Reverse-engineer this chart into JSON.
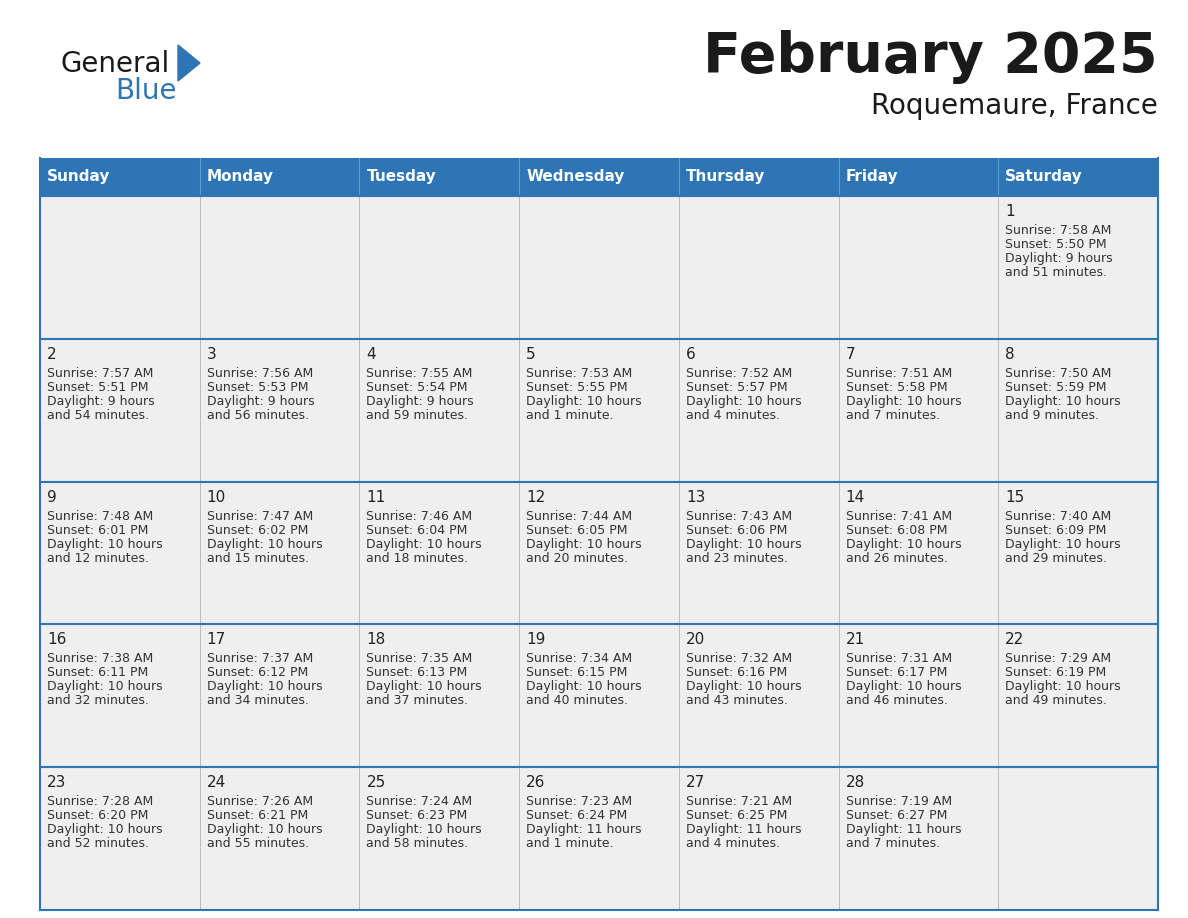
{
  "title": "February 2025",
  "subtitle": "Roquemaure, France",
  "header_bg": "#2E75B6",
  "header_text": "#FFFFFF",
  "days_of_week": [
    "Sunday",
    "Monday",
    "Tuesday",
    "Wednesday",
    "Thursday",
    "Friday",
    "Saturday"
  ],
  "row_bg": "#EFEFEF",
  "cell_border": "#2E75B6",
  "calendar_data": [
    [
      null,
      null,
      null,
      null,
      null,
      null,
      {
        "day": "1",
        "sunrise": "7:58 AM",
        "sunset": "5:50 PM",
        "daylight_line1": "Daylight: 9 hours",
        "daylight_line2": "and 51 minutes."
      }
    ],
    [
      {
        "day": "2",
        "sunrise": "7:57 AM",
        "sunset": "5:51 PM",
        "daylight_line1": "Daylight: 9 hours",
        "daylight_line2": "and 54 minutes."
      },
      {
        "day": "3",
        "sunrise": "7:56 AM",
        "sunset": "5:53 PM",
        "daylight_line1": "Daylight: 9 hours",
        "daylight_line2": "and 56 minutes."
      },
      {
        "day": "4",
        "sunrise": "7:55 AM",
        "sunset": "5:54 PM",
        "daylight_line1": "Daylight: 9 hours",
        "daylight_line2": "and 59 minutes."
      },
      {
        "day": "5",
        "sunrise": "7:53 AM",
        "sunset": "5:55 PM",
        "daylight_line1": "Daylight: 10 hours",
        "daylight_line2": "and 1 minute."
      },
      {
        "day": "6",
        "sunrise": "7:52 AM",
        "sunset": "5:57 PM",
        "daylight_line1": "Daylight: 10 hours",
        "daylight_line2": "and 4 minutes."
      },
      {
        "day": "7",
        "sunrise": "7:51 AM",
        "sunset": "5:58 PM",
        "daylight_line1": "Daylight: 10 hours",
        "daylight_line2": "and 7 minutes."
      },
      {
        "day": "8",
        "sunrise": "7:50 AM",
        "sunset": "5:59 PM",
        "daylight_line1": "Daylight: 10 hours",
        "daylight_line2": "and 9 minutes."
      }
    ],
    [
      {
        "day": "9",
        "sunrise": "7:48 AM",
        "sunset": "6:01 PM",
        "daylight_line1": "Daylight: 10 hours",
        "daylight_line2": "and 12 minutes."
      },
      {
        "day": "10",
        "sunrise": "7:47 AM",
        "sunset": "6:02 PM",
        "daylight_line1": "Daylight: 10 hours",
        "daylight_line2": "and 15 minutes."
      },
      {
        "day": "11",
        "sunrise": "7:46 AM",
        "sunset": "6:04 PM",
        "daylight_line1": "Daylight: 10 hours",
        "daylight_line2": "and 18 minutes."
      },
      {
        "day": "12",
        "sunrise": "7:44 AM",
        "sunset": "6:05 PM",
        "daylight_line1": "Daylight: 10 hours",
        "daylight_line2": "and 20 minutes."
      },
      {
        "day": "13",
        "sunrise": "7:43 AM",
        "sunset": "6:06 PM",
        "daylight_line1": "Daylight: 10 hours",
        "daylight_line2": "and 23 minutes."
      },
      {
        "day": "14",
        "sunrise": "7:41 AM",
        "sunset": "6:08 PM",
        "daylight_line1": "Daylight: 10 hours",
        "daylight_line2": "and 26 minutes."
      },
      {
        "day": "15",
        "sunrise": "7:40 AM",
        "sunset": "6:09 PM",
        "daylight_line1": "Daylight: 10 hours",
        "daylight_line2": "and 29 minutes."
      }
    ],
    [
      {
        "day": "16",
        "sunrise": "7:38 AM",
        "sunset": "6:11 PM",
        "daylight_line1": "Daylight: 10 hours",
        "daylight_line2": "and 32 minutes."
      },
      {
        "day": "17",
        "sunrise": "7:37 AM",
        "sunset": "6:12 PM",
        "daylight_line1": "Daylight: 10 hours",
        "daylight_line2": "and 34 minutes."
      },
      {
        "day": "18",
        "sunrise": "7:35 AM",
        "sunset": "6:13 PM",
        "daylight_line1": "Daylight: 10 hours",
        "daylight_line2": "and 37 minutes."
      },
      {
        "day": "19",
        "sunrise": "7:34 AM",
        "sunset": "6:15 PM",
        "daylight_line1": "Daylight: 10 hours",
        "daylight_line2": "and 40 minutes."
      },
      {
        "day": "20",
        "sunrise": "7:32 AM",
        "sunset": "6:16 PM",
        "daylight_line1": "Daylight: 10 hours",
        "daylight_line2": "and 43 minutes."
      },
      {
        "day": "21",
        "sunrise": "7:31 AM",
        "sunset": "6:17 PM",
        "daylight_line1": "Daylight: 10 hours",
        "daylight_line2": "and 46 minutes."
      },
      {
        "day": "22",
        "sunrise": "7:29 AM",
        "sunset": "6:19 PM",
        "daylight_line1": "Daylight: 10 hours",
        "daylight_line2": "and 49 minutes."
      }
    ],
    [
      {
        "day": "23",
        "sunrise": "7:28 AM",
        "sunset": "6:20 PM",
        "daylight_line1": "Daylight: 10 hours",
        "daylight_line2": "and 52 minutes."
      },
      {
        "day": "24",
        "sunrise": "7:26 AM",
        "sunset": "6:21 PM",
        "daylight_line1": "Daylight: 10 hours",
        "daylight_line2": "and 55 minutes."
      },
      {
        "day": "25",
        "sunrise": "7:24 AM",
        "sunset": "6:23 PM",
        "daylight_line1": "Daylight: 10 hours",
        "daylight_line2": "and 58 minutes."
      },
      {
        "day": "26",
        "sunrise": "7:23 AM",
        "sunset": "6:24 PM",
        "daylight_line1": "Daylight: 11 hours",
        "daylight_line2": "and 1 minute."
      },
      {
        "day": "27",
        "sunrise": "7:21 AM",
        "sunset": "6:25 PM",
        "daylight_line1": "Daylight: 11 hours",
        "daylight_line2": "and 4 minutes."
      },
      {
        "day": "28",
        "sunrise": "7:19 AM",
        "sunset": "6:27 PM",
        "daylight_line1": "Daylight: 11 hours",
        "daylight_line2": "and 7 minutes."
      },
      null
    ]
  ],
  "logo_general_color": "#1a1a1a",
  "logo_blue_color": "#2E75B6",
  "logo_triangle_color": "#2E75B6",
  "title_fontsize": 40,
  "subtitle_fontsize": 20,
  "dow_fontsize": 11,
  "day_num_fontsize": 11,
  "info_fontsize": 9
}
